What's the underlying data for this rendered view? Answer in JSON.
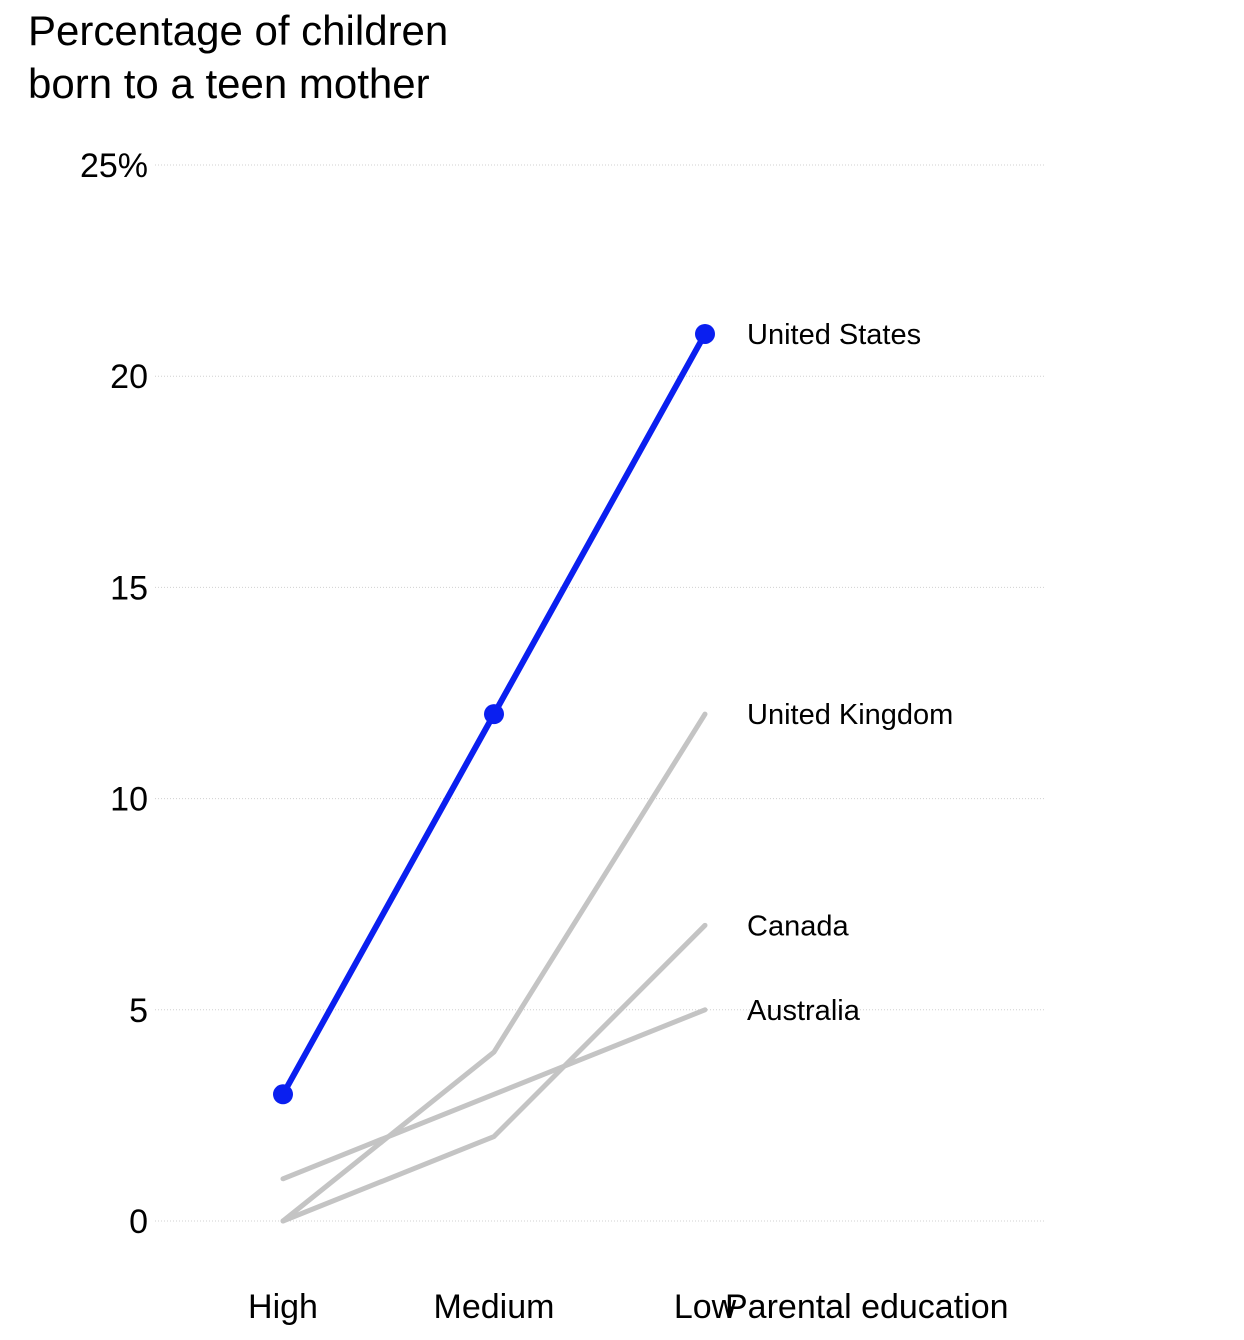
{
  "title": {
    "line1": "Percentage of children",
    "line2": "born to a teen mother"
  },
  "chart_data": {
    "type": "line",
    "title": "Percentage of children born to a teen mother",
    "xlabel": "Parental education",
    "ylabel": "",
    "categories": [
      "High",
      "Medium",
      "Low"
    ],
    "ylim": [
      0,
      25
    ],
    "yticks": [
      0,
      5,
      10,
      15,
      20,
      25
    ],
    "ytick_labels": [
      "0",
      "5",
      "10",
      "15",
      "20",
      "25%"
    ],
    "grid": true,
    "series": [
      {
        "name": "United States",
        "values": [
          3,
          12,
          21
        ],
        "color": "#0a1ff0",
        "markers": true
      },
      {
        "name": "United Kingdom",
        "values": [
          0,
          4,
          12
        ],
        "color": "#c4c4c4",
        "markers": false
      },
      {
        "name": "Canada",
        "values": [
          0,
          2,
          7
        ],
        "color": "#c4c4c4",
        "markers": false
      },
      {
        "name": "Australia",
        "values": [
          1,
          3,
          5
        ],
        "color": "#c4c4c4",
        "markers": false
      }
    ]
  }
}
